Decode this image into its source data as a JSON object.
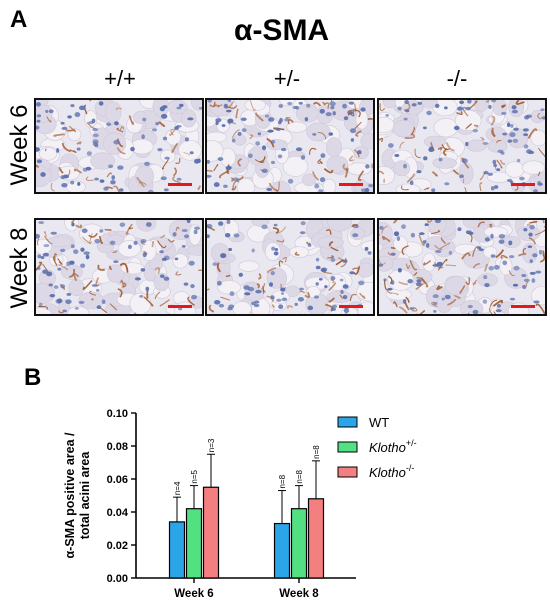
{
  "panels": {
    "a_label": "A",
    "b_label": "B"
  },
  "panel_a": {
    "title": "α-SMA",
    "columns": [
      "+/+",
      "+/-",
      "-/-"
    ],
    "rows": [
      "Week 6",
      "Week 8"
    ],
    "stain_colors": {
      "background": "#e9e7ef",
      "nuclei": "#5a6fae",
      "brown_stain": "#a0572a",
      "scale_bar": "#e3191c"
    },
    "images": [
      {
        "row": "Week 6",
        "column": "+/+",
        "stain_level": 0.25
      },
      {
        "row": "Week 6",
        "column": "+/-",
        "stain_level": 0.45
      },
      {
        "row": "Week 6",
        "column": "-/-",
        "stain_level": 0.35
      },
      {
        "row": "Week 8",
        "column": "+/+",
        "stain_level": 0.45
      },
      {
        "row": "Week 8",
        "column": "+/-",
        "stain_level": 0.35
      },
      {
        "row": "Week 8",
        "column": "-/-",
        "stain_level": 0.7
      }
    ]
  },
  "chart_data": {
    "type": "bar",
    "categories": [
      "Week 6",
      "Week 8"
    ],
    "ylabel_line1": "α-SMA positive area /",
    "ylabel_line2": "total acini area",
    "ylim": [
      0,
      0.1
    ],
    "yticks": [
      "0.00",
      "0.02",
      "0.04",
      "0.06",
      "0.08",
      "0.10"
    ],
    "grid": false,
    "legend_position": "right",
    "series": [
      {
        "name": "WT",
        "name_sup": "",
        "color": "#2aa6e8",
        "values": [
          0.034,
          0.033
        ],
        "errors": [
          0.015,
          0.02
        ],
        "n_labels": [
          "n=4",
          "n=8"
        ]
      },
      {
        "name": "Klotho",
        "name_sup": "+/-",
        "color": "#53e083",
        "values": [
          0.042,
          0.042
        ],
        "errors": [
          0.014,
          0.014
        ],
        "n_labels": [
          "n=5",
          "n=8"
        ]
      },
      {
        "name": "Klotho",
        "name_sup": "-/-",
        "color": "#f47f80",
        "values": [
          0.055,
          0.048
        ],
        "errors": [
          0.02,
          0.023
        ],
        "n_labels": [
          "n=3",
          "n=8"
        ]
      }
    ]
  }
}
